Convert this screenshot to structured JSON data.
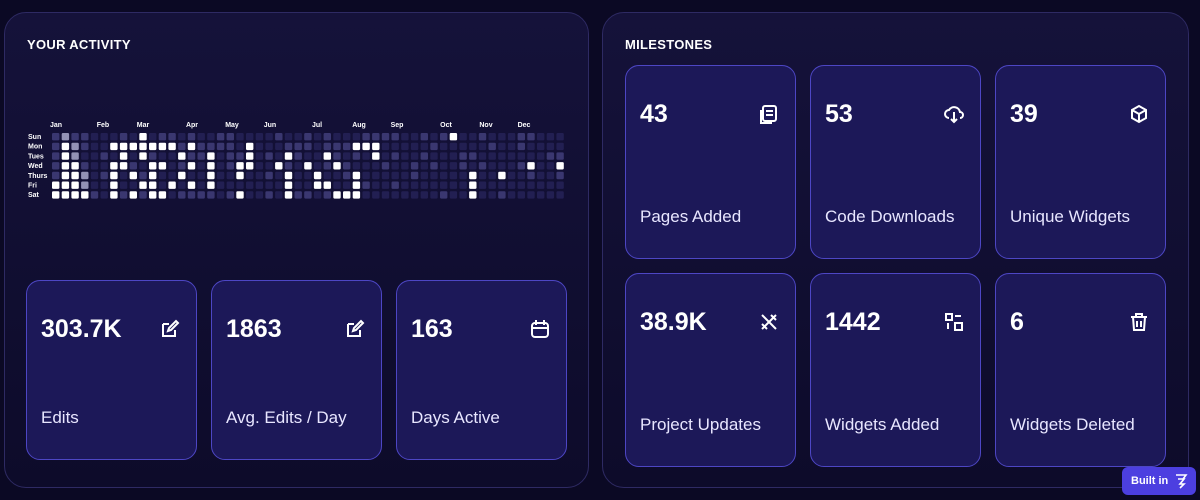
{
  "activity": {
    "title": "YOUR ACTIVITY",
    "months": [
      "Jan",
      "Feb",
      "Mar",
      "Apr",
      "May",
      "Jun",
      "Jul",
      "Aug",
      "Sep",
      "Oct",
      "Nov",
      "Dec"
    ],
    "days": [
      "Sun",
      "Mon",
      "Tues",
      "Wed",
      "Thurs",
      "Fri",
      "Sat"
    ],
    "heatmap": [
      [
        1,
        2,
        1,
        1,
        0,
        0,
        0,
        1,
        0,
        3,
        0,
        1,
        1,
        0,
        1,
        0,
        0,
        1,
        1,
        0,
        0,
        0,
        0,
        1,
        0,
        0,
        1,
        0,
        1,
        0,
        0,
        0,
        1,
        1,
        1,
        1,
        0,
        0,
        1,
        0,
        1,
        3,
        0,
        0,
        1,
        0,
        0,
        0,
        1,
        1,
        0,
        0,
        0
      ],
      [
        1,
        3,
        2,
        1,
        0,
        0,
        3,
        3,
        3,
        3,
        3,
        3,
        3,
        1,
        3,
        1,
        1,
        1,
        1,
        0,
        3,
        0,
        0,
        0,
        1,
        1,
        1,
        0,
        1,
        1,
        1,
        3,
        3,
        3,
        0,
        0,
        0,
        0,
        0,
        1,
        0,
        0,
        0,
        0,
        0,
        1,
        0,
        0,
        1,
        0,
        0,
        0,
        0
      ],
      [
        1,
        3,
        2,
        0,
        0,
        1,
        0,
        3,
        0,
        3,
        1,
        0,
        0,
        3,
        1,
        1,
        3,
        0,
        1,
        1,
        3,
        0,
        1,
        0,
        3,
        1,
        0,
        0,
        3,
        1,
        0,
        1,
        0,
        3,
        0,
        1,
        0,
        0,
        1,
        0,
        0,
        0,
        1,
        1,
        0,
        0,
        0,
        0,
        0,
        0,
        0,
        1,
        1
      ],
      [
        1,
        3,
        3,
        1,
        0,
        0,
        3,
        3,
        1,
        0,
        3,
        3,
        0,
        1,
        3,
        0,
        3,
        0,
        1,
        3,
        3,
        0,
        0,
        3,
        1,
        0,
        3,
        0,
        1,
        3,
        1,
        0,
        0,
        0,
        1,
        0,
        0,
        1,
        0,
        1,
        0,
        0,
        1,
        0,
        1,
        0,
        0,
        0,
        1,
        3,
        0,
        0,
        3
      ],
      [
        1,
        3,
        3,
        2,
        0,
        1,
        3,
        0,
        3,
        1,
        3,
        0,
        0,
        3,
        0,
        0,
        3,
        0,
        0,
        3,
        0,
        0,
        1,
        0,
        3,
        0,
        0,
        3,
        0,
        0,
        1,
        3,
        0,
        0,
        0,
        0,
        0,
        1,
        0,
        0,
        0,
        0,
        0,
        3,
        0,
        0,
        3,
        0,
        0,
        1,
        0,
        0,
        1
      ],
      [
        3,
        3,
        3,
        2,
        0,
        0,
        3,
        0,
        0,
        3,
        3,
        0,
        3,
        0,
        3,
        0,
        3,
        0,
        0,
        0,
        0,
        0,
        0,
        0,
        3,
        0,
        0,
        3,
        3,
        0,
        0,
        3,
        1,
        0,
        0,
        1,
        0,
        0,
        0,
        0,
        0,
        0,
        0,
        3,
        0,
        0,
        0,
        0,
        0,
        0,
        0,
        0,
        0
      ],
      [
        3,
        3,
        3,
        3,
        1,
        0,
        3,
        1,
        3,
        1,
        3,
        3,
        0,
        1,
        1,
        1,
        1,
        0,
        1,
        3,
        0,
        0,
        1,
        0,
        3,
        1,
        1,
        0,
        1,
        3,
        3,
        3,
        0,
        0,
        0,
        0,
        0,
        0,
        0,
        0,
        1,
        0,
        0,
        3,
        0,
        0,
        1,
        0,
        0,
        0,
        0,
        0,
        0
      ]
    ],
    "stats": [
      {
        "value": "303.7K",
        "label": "Edits"
      },
      {
        "value": 1863,
        "label": "Avg. Edits / Day"
      },
      {
        "value": 163,
        "label": "Days Active"
      }
    ]
  },
  "milestones": {
    "title": "MILESTONES",
    "items": [
      {
        "value": 43,
        "label": "Pages Added"
      },
      {
        "value": 53,
        "label": "Code Downloads"
      },
      {
        "value": 39,
        "label": "Unique Widgets"
      },
      {
        "value": "38.9K",
        "label": "Project Updates"
      },
      {
        "value": 1442,
        "label": "Widgets Added"
      },
      {
        "value": 6,
        "label": "Widgets Deleted"
      }
    ]
  },
  "badge": "Built in"
}
